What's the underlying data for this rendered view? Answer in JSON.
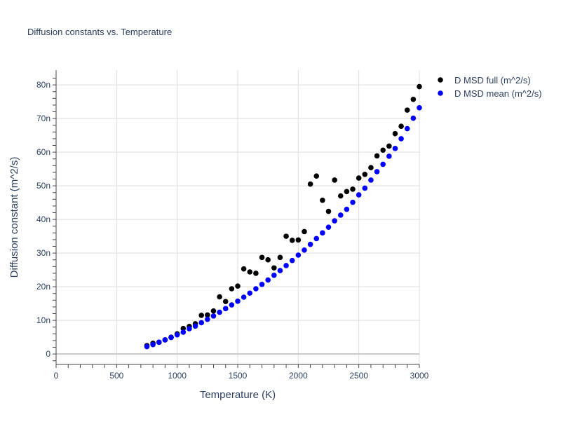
{
  "chart_data": {
    "type": "scatter",
    "title": "Diffusion constants vs. Temperature",
    "xlabel": "Temperature (K)",
    "ylabel": "Diffusion constant (m^2/s)",
    "xlim": [
      0,
      3000
    ],
    "ylim": [
      -3.1e-09,
      8.44e-08
    ],
    "x_ticks": [
      0,
      500,
      1000,
      1500,
      2000,
      2500,
      3000
    ],
    "x_tick_labels": [
      "0",
      "500",
      "1000",
      "1500",
      "2000",
      "2500",
      "3000"
    ],
    "y_ticks": [
      0,
      1e-08,
      2e-08,
      3e-08,
      4e-08,
      5e-08,
      6e-08,
      7e-08,
      8e-08
    ],
    "y_tick_labels": [
      "0",
      "10n",
      "20n",
      "30n",
      "40n",
      "50n",
      "60n",
      "70n",
      "80n"
    ],
    "grid": true,
    "legend_position": "top-right",
    "x": [
      750,
      800,
      850,
      900,
      950,
      1000,
      1050,
      1100,
      1150,
      1200,
      1250,
      1300,
      1350,
      1400,
      1450,
      1500,
      1550,
      1600,
      1650,
      1700,
      1750,
      1800,
      1850,
      1900,
      1950,
      2000,
      2050,
      2100,
      2150,
      2200,
      2250,
      2300,
      2350,
      2400,
      2450,
      2500,
      2550,
      2600,
      2650,
      2700,
      2750,
      2800,
      2850,
      2900,
      2950,
      3000
    ],
    "series": [
      {
        "name": "D MSD full (m^2/s)",
        "color": "#000000",
        "values_nano": [
          2.5,
          3.2,
          3.5,
          4.2,
          5.0,
          6.0,
          7.6,
          8.2,
          9.0,
          11.5,
          11.6,
          12.8,
          17.0,
          15.6,
          19.4,
          20.2,
          25.3,
          24.4,
          24.0,
          28.7,
          28.0,
          25.6,
          28.7,
          35.0,
          33.8,
          33.9,
          36.4,
          50.5,
          52.9,
          45.7,
          42.4,
          51.7,
          47.0,
          48.3,
          49.0,
          52.3,
          53.4,
          55.4,
          58.9,
          60.6,
          61.8,
          65.5,
          67.7,
          72.5,
          75.7,
          79.5
        ]
      },
      {
        "name": "D MSD mean (m^2/s)",
        "color": "#0000ff",
        "values_nano": [
          2.2,
          2.8,
          3.5,
          4.2,
          4.9,
          5.7,
          6.5,
          7.5,
          8.3,
          9.3,
          10.3,
          11.3,
          12.4,
          13.5,
          14.6,
          15.7,
          16.9,
          18.1,
          19.4,
          20.7,
          22.0,
          23.4,
          24.8,
          26.3,
          27.8,
          29.4,
          30.9,
          32.6,
          34.3,
          36.0,
          37.7,
          39.6,
          41.3,
          43.0,
          45.1,
          47.3,
          49.3,
          51.7,
          54.2,
          56.4,
          58.8,
          61.1,
          64.0,
          67.0,
          70.1,
          73.2
        ]
      }
    ]
  }
}
